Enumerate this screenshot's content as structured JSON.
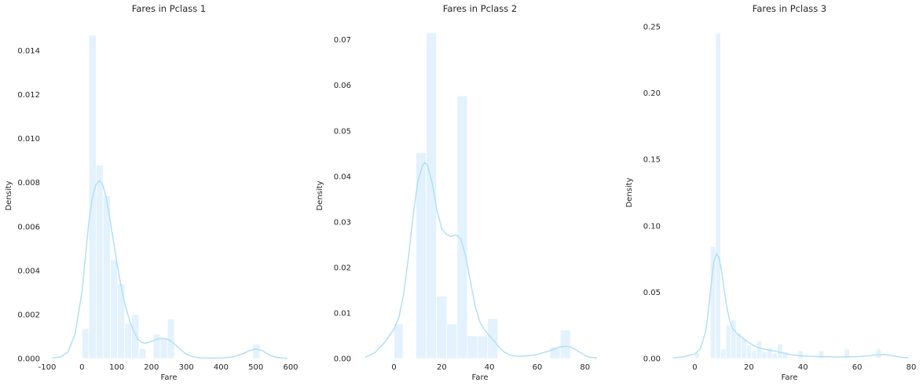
{
  "chart_data": [
    {
      "type": "histogram",
      "title": "Fares in Pclass 1",
      "xlabel": "Fare",
      "ylabel": "Density",
      "xlim": [
        -100,
        600
      ],
      "ylim": [
        0,
        0.0148
      ],
      "xticks": [
        -100,
        0,
        100,
        200,
        300,
        400,
        500,
        600
      ],
      "yticks": [
        0.0,
        0.002,
        0.004,
        0.006,
        0.008,
        0.01,
        0.012,
        0.014
      ],
      "ytick_decimals": 3,
      "bar_color": "#e3f2fd",
      "kde_color": "#b3dff5",
      "bins": [
        {
          "x0": 0,
          "x1": 20,
          "density": 0.00135
        },
        {
          "x0": 20,
          "x1": 41,
          "density": 0.0147
        },
        {
          "x0": 41,
          "x1": 61,
          "density": 0.0088
        },
        {
          "x0": 61,
          "x1": 82,
          "density": 0.0074
        },
        {
          "x0": 82,
          "x1": 102,
          "density": 0.0045
        },
        {
          "x0": 102,
          "x1": 123,
          "density": 0.0034
        },
        {
          "x0": 123,
          "x1": 143,
          "density": 0.0016
        },
        {
          "x0": 143,
          "x1": 164,
          "density": 0.002
        },
        {
          "x0": 164,
          "x1": 184,
          "density": 0.00045
        },
        {
          "x0": 184,
          "x1": 205,
          "density": 0
        },
        {
          "x0": 205,
          "x1": 225,
          "density": 0.0011
        },
        {
          "x0": 225,
          "x1": 246,
          "density": 0.0009
        },
        {
          "x0": 246,
          "x1": 266,
          "density": 0.0018
        },
        {
          "x0": 491,
          "x1": 512,
          "density": 0.00065
        }
      ],
      "kde": {
        "x": [
          -85,
          -60,
          -40,
          -20,
          0,
          10,
          20,
          30,
          40,
          50,
          60,
          70,
          80,
          90,
          100,
          110,
          120,
          130,
          140,
          150,
          160,
          170,
          180,
          190,
          200,
          210,
          220,
          230,
          240,
          250,
          260,
          270,
          280,
          300,
          320,
          340,
          360,
          380,
          400,
          420,
          440,
          460,
          480,
          500,
          520,
          540,
          560,
          590
        ],
        "y": [
          3e-05,
          8e-05,
          0.0003,
          0.0011,
          0.003,
          0.0046,
          0.0062,
          0.0073,
          0.0079,
          0.0081,
          0.0079,
          0.0073,
          0.0064,
          0.0054,
          0.0044,
          0.0035,
          0.0027,
          0.0021,
          0.0016,
          0.0012,
          0.0009,
          0.00075,
          0.0007,
          0.00072,
          0.00078,
          0.00085,
          0.0009,
          0.00092,
          0.0009,
          0.00085,
          0.00075,
          0.0006,
          0.00045,
          0.0002,
          8e-05,
          3e-05,
          2e-05,
          2e-05,
          3e-05,
          5e-05,
          0.0001,
          0.0002,
          0.00035,
          0.00045,
          0.00035,
          0.00015,
          5e-05,
          1e-05
        ]
      }
    },
    {
      "type": "histogram",
      "title": "Fares in Pclass 2",
      "xlabel": "Fare",
      "ylabel": "Density",
      "xlim": [
        -15,
        87
      ],
      "ylim": [
        0,
        0.0715
      ],
      "xticks": [
        0,
        20,
        40,
        60,
        80
      ],
      "yticks": [
        0.0,
        0.01,
        0.02,
        0.03,
        0.04,
        0.05,
        0.06,
        0.07
      ],
      "ytick_decimals": 2,
      "bar_color": "#e3f2fd",
      "kde_color": "#b3dff5",
      "bins": [
        {
          "x0": 0,
          "x1": 3.8,
          "density": 0.0076
        },
        {
          "x0": 9.2,
          "x1": 13.5,
          "density": 0.0452
        },
        {
          "x0": 13.5,
          "x1": 17.8,
          "density": 0.0715
        },
        {
          "x0": 17.8,
          "x1": 22.1,
          "density": 0.0137
        },
        {
          "x0": 22.1,
          "x1": 26.4,
          "density": 0.0076
        },
        {
          "x0": 26.4,
          "x1": 30.7,
          "density": 0.0577
        },
        {
          "x0": 30.7,
          "x1": 35.0,
          "density": 0.005
        },
        {
          "x0": 35.0,
          "x1": 39.2,
          "density": 0.005
        },
        {
          "x0": 39.2,
          "x1": 43.5,
          "density": 0.0088
        },
        {
          "x0": 65.3,
          "x1": 69.6,
          "density": 0.0025
        },
        {
          "x0": 69.6,
          "x1": 73.9,
          "density": 0.0063
        }
      ],
      "kde": {
        "x": [
          -12,
          -8,
          -4,
          0,
          2,
          4,
          6,
          8,
          10,
          12,
          13,
          14,
          16,
          18,
          20,
          22,
          24,
          26,
          28,
          30,
          32,
          34,
          36,
          38,
          40,
          42,
          44,
          46,
          48,
          50,
          52,
          54,
          56,
          58,
          60,
          62,
          64,
          66,
          68,
          70,
          72,
          74,
          76,
          78,
          80,
          82,
          85
        ],
        "y": [
          0.0003,
          0.0013,
          0.0035,
          0.0065,
          0.009,
          0.014,
          0.022,
          0.0315,
          0.039,
          0.0425,
          0.043,
          0.0425,
          0.0385,
          0.0325,
          0.0285,
          0.0272,
          0.0268,
          0.0272,
          0.0262,
          0.0225,
          0.017,
          0.0115,
          0.008,
          0.0062,
          0.005,
          0.0038,
          0.0025,
          0.0015,
          0.0009,
          0.0006,
          0.0005,
          0.0005,
          0.0006,
          0.0007,
          0.0009,
          0.0012,
          0.0015,
          0.0019,
          0.0023,
          0.0026,
          0.0027,
          0.0025,
          0.002,
          0.0013,
          0.0007,
          0.0003,
          0.0001
        ]
      }
    },
    {
      "type": "histogram",
      "title": "Fares in Pclass 3",
      "xlabel": "Fare",
      "ylabel": "Density",
      "xlim": [
        -10,
        80
      ],
      "ylim": [
        0,
        0.25
      ],
      "xticks": [
        0,
        20,
        40,
        60,
        80
      ],
      "yticks": [
        0.0,
        0.05,
        0.1,
        0.15,
        0.2,
        0.25
      ],
      "ytick_decimals": 2,
      "bar_color": "#e3f2fd",
      "kde_color": "#b3dff5",
      "bins": [
        {
          "x0": 0,
          "x1": 1.8,
          "density": 0.0045
        },
        {
          "x0": 5.8,
          "x1": 7.7,
          "density": 0.0845
        },
        {
          "x0": 7.7,
          "x1": 9.6,
          "density": 0.245
        },
        {
          "x0": 9.6,
          "x1": 11.5,
          "density": 0.007
        },
        {
          "x0": 11.5,
          "x1": 13.4,
          "density": 0.025
        },
        {
          "x0": 13.4,
          "x1": 15.3,
          "density": 0.029
        },
        {
          "x0": 15.3,
          "x1": 17.2,
          "density": 0.019
        },
        {
          "x0": 17.2,
          "x1": 19.1,
          "density": 0.015
        },
        {
          "x0": 19.1,
          "x1": 21.0,
          "density": 0.01
        },
        {
          "x0": 21.0,
          "x1": 22.9,
          "density": 0.006
        },
        {
          "x0": 22.9,
          "x1": 24.8,
          "density": 0.013
        },
        {
          "x0": 24.8,
          "x1": 26.7,
          "density": 0.005
        },
        {
          "x0": 26.7,
          "x1": 28.6,
          "density": 0.008
        },
        {
          "x0": 28.6,
          "x1": 30.5,
          "density": 0.004
        },
        {
          "x0": 30.5,
          "x1": 32.4,
          "density": 0.011
        },
        {
          "x0": 32.4,
          "x1": 34.3,
          "density": 0.005
        },
        {
          "x0": 38.1,
          "x1": 40.0,
          "density": 0.006
        },
        {
          "x0": 45.8,
          "x1": 47.7,
          "density": 0.006
        },
        {
          "x0": 55.3,
          "x1": 57.2,
          "density": 0.007
        },
        {
          "x0": 67.0,
          "x1": 68.9,
          "density": 0.007
        }
      ],
      "kde": {
        "x": [
          -8,
          -4,
          0,
          2,
          4,
          5,
          6,
          7,
          8,
          9,
          10,
          11,
          12,
          13,
          14,
          16,
          18,
          20,
          22,
          24,
          26,
          28,
          30,
          32,
          34,
          36,
          38,
          40,
          44,
          48,
          52,
          56,
          60,
          64,
          66,
          68,
          70,
          72,
          74,
          76,
          79
        ],
        "y": [
          0.0005,
          0.0015,
          0.0035,
          0.007,
          0.02,
          0.035,
          0.055,
          0.072,
          0.079,
          0.076,
          0.065,
          0.05,
          0.037,
          0.028,
          0.0225,
          0.018,
          0.015,
          0.012,
          0.0095,
          0.008,
          0.007,
          0.0062,
          0.0055,
          0.0045,
          0.0035,
          0.0028,
          0.0023,
          0.002,
          0.0016,
          0.0014,
          0.0012,
          0.0013,
          0.0014,
          0.002,
          0.0024,
          0.0028,
          0.003,
          0.0025,
          0.0017,
          0.001,
          0.0004
        ]
      }
    }
  ]
}
